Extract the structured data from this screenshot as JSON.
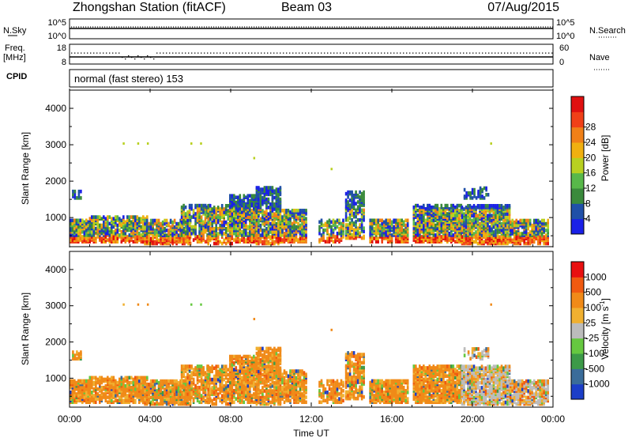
{
  "header": {
    "station": "Zhongshan Station (fitACF)",
    "beam": "Beam 03",
    "date": "07/Aug/2015"
  },
  "status_panels": {
    "nsky_label": "N.Sky",
    "nsky_ticks": [
      "10^5",
      "10^0"
    ],
    "nsearch_label": "N.Search",
    "nsearch_ticks": [
      "10^5",
      "10^0"
    ],
    "freq_label": "Freq.",
    "freq_unit": "[MHz]",
    "freq_ticks": [
      "18",
      "8"
    ],
    "nave_label": "Nave",
    "nave_ticks": [
      "60",
      "0"
    ],
    "cpid_label": "CPID",
    "cpid_text": "normal (fast stereo) 153"
  },
  "chart_data": [
    {
      "type": "heatmap",
      "name": "power",
      "ylabel": "Slant Range [km]",
      "yticks": [
        "1000",
        "2000",
        "3000",
        "4000"
      ],
      "ylim": [
        200,
        4500
      ],
      "colorbar_label": "Power [dB]",
      "colorbar_ticks": [
        "4",
        "8",
        "12",
        "16",
        "20",
        "24",
        "28"
      ],
      "colors": [
        "#1a20e8",
        "#2050a8",
        "#3a8a3c",
        "#58b84a",
        "#b8d020",
        "#f0b010",
        "#f08018",
        "#f04018",
        "#e01010"
      ]
    },
    {
      "type": "heatmap",
      "name": "velocity",
      "ylabel": "Slant Range [km]",
      "yticks": [
        "1000",
        "2000",
        "3000",
        "4000"
      ],
      "ylim": [
        200,
        4500
      ],
      "xlabel": "Time UT",
      "xticks": [
        "00:00",
        "04:00",
        "08:00",
        "12:00",
        "16:00",
        "20:00",
        "00:00"
      ],
      "colorbar_label": "Velocity [m s",
      "colorbar_label_sup": "-1",
      "colorbar_label_end": "]",
      "colorbar_ticks": [
        "1000",
        "500",
        "100",
        "25",
        "-25",
        "-100",
        "-500",
        "-1000"
      ],
      "colors": [
        "#1c3ec8",
        "#3a6c9a",
        "#3c9a48",
        "#66c840",
        "#bcbcbc",
        "#f0b030",
        "#f08a18",
        "#f05a10",
        "#e81010"
      ]
    }
  ]
}
